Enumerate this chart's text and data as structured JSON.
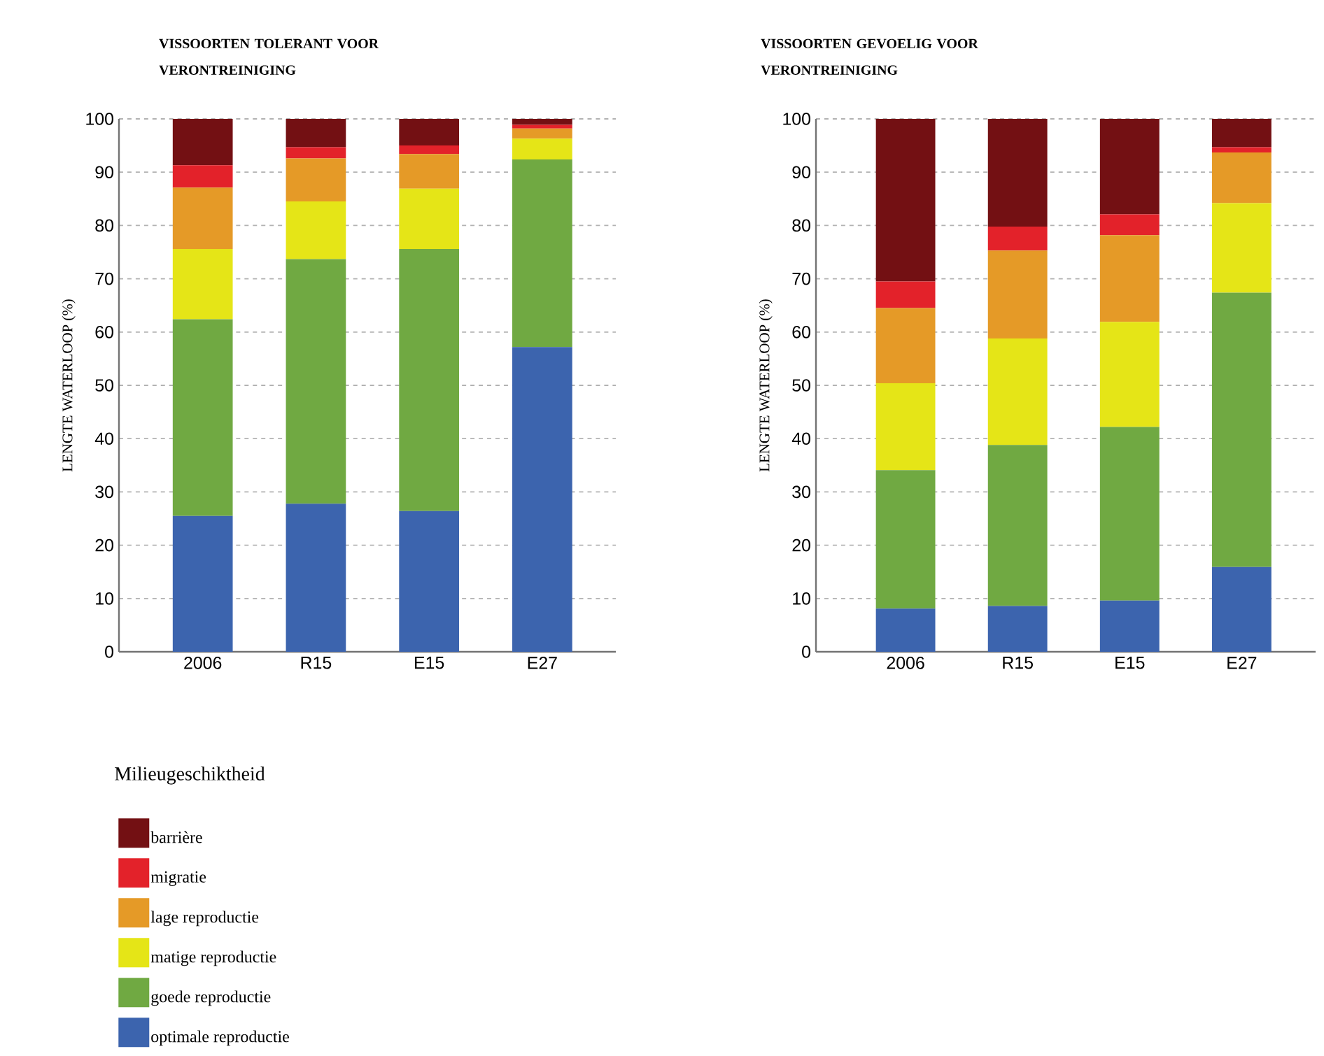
{
  "chart_data": [
    {
      "type": "bar",
      "stacked": true,
      "title": "VISSOORTEN TOLERANT VOOR VERONTREINIGING",
      "ylabel": "LENGTE WATERLOOP (%)",
      "categories": [
        "2006",
        "R15",
        "E15",
        "E27"
      ],
      "ylim": [
        0,
        100
      ],
      "yticks": [
        0,
        10,
        20,
        30,
        40,
        50,
        60,
        70,
        80,
        90,
        100
      ],
      "grid": "y",
      "legend": "bottom",
      "legend_title": "Milieugeschiktheid",
      "series": [
        {
          "name": "optimale reproductie",
          "color": "#3c64ae",
          "values": [
            25.5,
            27.8,
            26.4,
            57.2
          ]
        },
        {
          "name": "goede reproductie",
          "color": "#70a942",
          "values": [
            36.9,
            45.9,
            49.2,
            35.2
          ]
        },
        {
          "name": "matige reproductie",
          "color": "#e5e517",
          "values": [
            13.2,
            10.8,
            11.3,
            3.9
          ]
        },
        {
          "name": "lage reproductie",
          "color": "#e59a27",
          "values": [
            11.5,
            8.1,
            6.5,
            1.9
          ]
        },
        {
          "name": "migratie",
          "color": "#e3222a",
          "values": [
            4.2,
            2.1,
            1.6,
            0.7
          ]
        },
        {
          "name": "barrière",
          "color": "#731013",
          "values": [
            8.7,
            5.3,
            5.0,
            1.1
          ]
        }
      ]
    },
    {
      "type": "bar",
      "stacked": true,
      "title": "VISSOORTEN GEVOELIG VOOR VERONTREINIGING",
      "ylabel": "LENGTE WATERLOOP (%)",
      "categories": [
        "2006",
        "R15",
        "E15",
        "E27"
      ],
      "ylim": [
        0,
        100
      ],
      "yticks": [
        0,
        10,
        20,
        30,
        40,
        50,
        60,
        70,
        80,
        90,
        100
      ],
      "grid": "y",
      "series": [
        {
          "color": "#3c64ae",
          "values": [
            8.1,
            8.6,
            9.6,
            15.9
          ]
        },
        {
          "color": "#70a942",
          "values": [
            26.0,
            30.2,
            32.6,
            51.5
          ]
        },
        {
          "color": "#e5e517",
          "values": [
            16.3,
            20.0,
            19.7,
            16.8
          ]
        },
        {
          "color": "#e59a27",
          "values": [
            14.1,
            16.5,
            16.3,
            9.5
          ]
        },
        {
          "color": "#e3222a",
          "values": [
            5.0,
            4.5,
            3.9,
            1.0
          ]
        },
        {
          "color": "#731013",
          "values": [
            30.5,
            20.2,
            17.9,
            5.3
          ]
        }
      ]
    }
  ]
}
